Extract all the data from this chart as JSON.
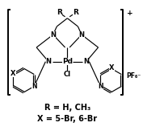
{
  "bg_color": "#ffffff",
  "line_color": "#000000",
  "label_R": "R = H, CH₃",
  "label_X": "X = 5-Br, 6-Br",
  "charge_plus": "+",
  "charge_pf6": "PF₆⁻",
  "label_R_left": "R",
  "label_R_right": "R",
  "label_N_ul": "N",
  "label_N_ur": "N",
  "label_N_ll": "N",
  "label_N_lr": "N",
  "label_Pd": "Pd",
  "label_Cl": "Cl",
  "label_X_left": "X",
  "label_X_right": "X"
}
